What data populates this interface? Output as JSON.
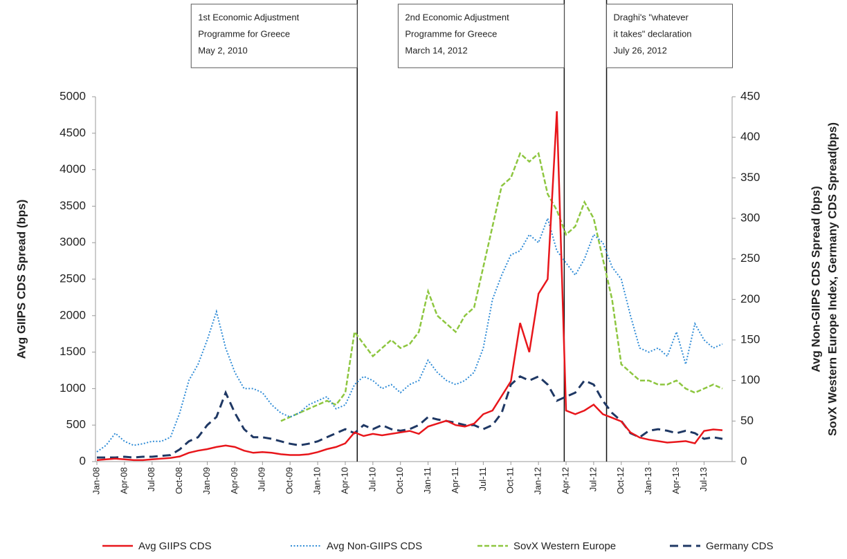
{
  "chart_data": {
    "type": "line",
    "ylabel": "Avg GIIPS CDS Spread (bps)",
    "y2label": [
      "Avg Non-GIIPS CDS Spread (bps)",
      "SovX Western Europe Index, Germany CDS Spread(bps)"
    ],
    "categories": [
      "Jan-08",
      null,
      null,
      "Apr-08",
      null,
      null,
      "Jul-08",
      null,
      null,
      "Oct-08",
      null,
      null,
      "Jan-09",
      null,
      null,
      "Apr-09",
      null,
      null,
      "Jul-09",
      null,
      null,
      "Oct-09",
      null,
      null,
      "Jan-10",
      null,
      null,
      "Apr-10",
      null,
      null,
      "Jul-10",
      null,
      null,
      "Oct-10",
      null,
      null,
      "Jan-11",
      null,
      null,
      "Apr-11",
      null,
      null,
      "Jul-11",
      null,
      null,
      "Oct-11",
      null,
      null,
      "Jan-12",
      null,
      null,
      "Apr-12",
      null,
      null,
      "Jul-12",
      null,
      null,
      "Oct-12",
      null,
      null,
      "Jan-13",
      null,
      null,
      "Apr-13",
      null,
      null,
      "Jul-13",
      null,
      null
    ],
    "ylim": [
      0,
      5000
    ],
    "yticks": [
      0,
      500,
      1000,
      1500,
      2000,
      2500,
      3000,
      3500,
      4000,
      4500,
      5000
    ],
    "y2lim": [
      0,
      450
    ],
    "y2ticks": [
      0,
      50,
      100,
      150,
      200,
      250,
      300,
      350,
      400,
      450
    ],
    "series": [
      {
        "name": "Avg GIIPS CDS",
        "color": "#e8161b",
        "style": "solid",
        "axis": "y",
        "values": [
          20,
          30,
          40,
          30,
          20,
          20,
          30,
          40,
          50,
          70,
          120,
          150,
          170,
          200,
          220,
          200,
          150,
          120,
          130,
          120,
          100,
          90,
          90,
          100,
          130,
          170,
          200,
          250,
          400,
          350,
          380,
          360,
          380,
          400,
          420,
          380,
          480,
          520,
          560,
          500,
          480,
          520,
          650,
          700,
          900,
          1100,
          1900,
          1500,
          2300,
          2500,
          4800,
          700,
          650,
          700,
          780,
          650,
          600,
          550,
          400,
          330,
          300,
          280,
          260,
          270,
          280,
          250,
          420,
          440,
          430
        ]
      },
      {
        "name": "Avg Non-GIIPS CDS",
        "color": "#2e8bd6",
        "style": "dotted",
        "axis": "y2",
        "values": [
          12,
          20,
          35,
          25,
          20,
          22,
          25,
          25,
          30,
          60,
          100,
          120,
          150,
          185,
          140,
          110,
          90,
          90,
          85,
          70,
          60,
          55,
          60,
          70,
          75,
          80,
          65,
          70,
          95,
          105,
          100,
          90,
          95,
          85,
          95,
          100,
          125,
          110,
          100,
          95,
          100,
          110,
          140,
          200,
          230,
          255,
          260,
          280,
          270,
          300,
          260,
          245,
          230,
          250,
          280,
          270,
          240,
          225,
          180,
          140,
          135,
          140,
          130,
          160,
          120,
          170,
          150,
          140,
          145
        ]
      },
      {
        "name": "SovX Western Europe",
        "color": "#8dc63f",
        "style": "dashed",
        "axis": "y2",
        "values": [
          null,
          null,
          null,
          null,
          null,
          null,
          null,
          null,
          null,
          null,
          null,
          null,
          null,
          null,
          null,
          null,
          null,
          null,
          null,
          null,
          50,
          55,
          60,
          65,
          70,
          75,
          70,
          85,
          160,
          145,
          130,
          140,
          150,
          140,
          145,
          160,
          210,
          180,
          170,
          160,
          180,
          190,
          240,
          290,
          340,
          350,
          380,
          370,
          380,
          330,
          310,
          280,
          290,
          320,
          300,
          250,
          200,
          120,
          110,
          100,
          100,
          95,
          95,
          100,
          90,
          85,
          90,
          95,
          90
        ]
      },
      {
        "name": "Germany CDS",
        "color": "#1f3864",
        "style": "longdash",
        "axis": "y2",
        "values": [
          5,
          5,
          5,
          6,
          5,
          6,
          6,
          7,
          8,
          15,
          25,
          30,
          45,
          55,
          85,
          60,
          40,
          30,
          30,
          28,
          25,
          22,
          20,
          22,
          25,
          30,
          35,
          40,
          35,
          45,
          40,
          45,
          40,
          38,
          40,
          45,
          55,
          52,
          50,
          48,
          45,
          45,
          40,
          45,
          60,
          95,
          105,
          100,
          105,
          95,
          75,
          80,
          85,
          100,
          95,
          75,
          60,
          50,
          35,
          30,
          38,
          40,
          38,
          35,
          38,
          35,
          28,
          30,
          28
        ]
      }
    ],
    "annotations": [
      {
        "x": 28.3,
        "lines": [
          "1st Economic Adjustment",
          "Programme for Greece",
          "May 2, 2010"
        ]
      },
      {
        "x": 50.8,
        "lines": [
          "2nd Economic Adjustment",
          "Programme for Greece",
          "March 14, 2012"
        ]
      },
      {
        "x": 55.4,
        "lines": [
          "Draghi's \"whatever",
          "it takes\" declaration",
          "July 26, 2012"
        ]
      }
    ]
  }
}
